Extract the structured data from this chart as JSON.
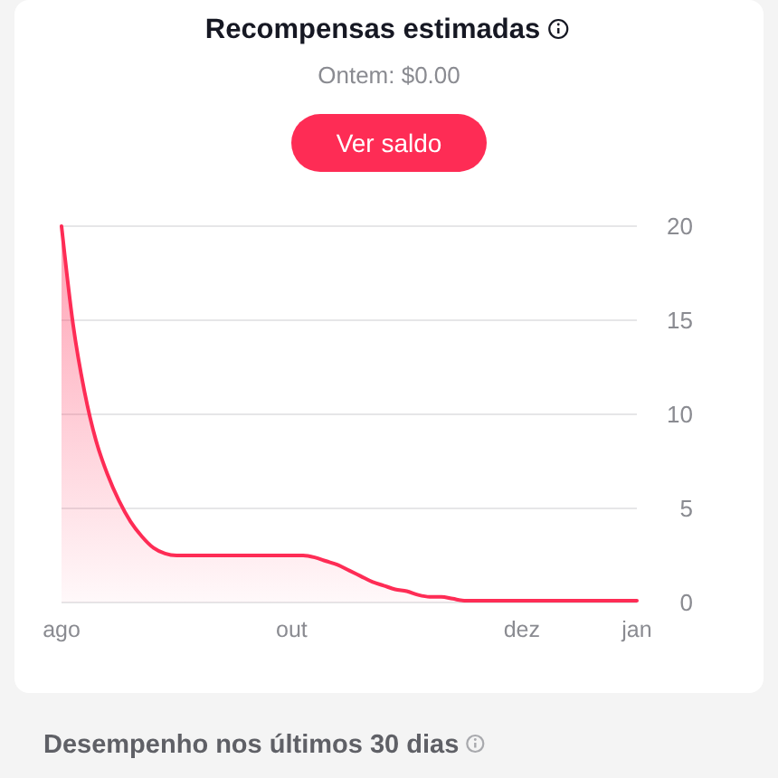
{
  "chart_data": {
    "type": "area",
    "title": "Recompensas estimadas",
    "subtitle": "Ontem: $0.00",
    "annotations": [
      "Ver saldo",
      "Desempenho nos últimos 30 dias"
    ],
    "categories": [
      "ago",
      null,
      null,
      null,
      null,
      null,
      null,
      null,
      null,
      null,
      null,
      null,
      null,
      null,
      null,
      null,
      null,
      null,
      null,
      null,
      "out",
      null,
      null,
      null,
      null,
      null,
      null,
      null,
      null,
      null,
      null,
      null,
      null,
      null,
      null,
      null,
      null,
      null,
      null,
      null,
      "dez",
      null,
      null,
      null,
      null,
      null,
      null,
      null,
      null,
      null,
      "jan"
    ],
    "values": [
      20,
      14.8,
      11.2,
      8.6,
      6.8,
      5.4,
      4.3,
      3.5,
      2.9,
      2.6,
      2.5,
      2.5,
      2.5,
      2.5,
      2.5,
      2.5,
      2.5,
      2.5,
      2.5,
      2.5,
      2.5,
      2.5,
      2.4,
      2.2,
      2,
      1.7,
      1.4,
      1.1,
      0.9,
      0.7,
      0.6,
      0.4,
      0.3,
      0.3,
      0.2,
      0.1,
      0.1,
      0.1,
      0.1,
      0.1,
      0.1,
      0.1,
      0.1,
      0.1,
      0.1,
      0.1,
      0.1,
      0.1,
      0.1,
      0.1,
      0.1
    ],
    "color": "#fe2c55",
    "ylim": [
      0,
      20
    ],
    "yticks": [
      0,
      5,
      10,
      15,
      20
    ],
    "grid": "y"
  }
}
